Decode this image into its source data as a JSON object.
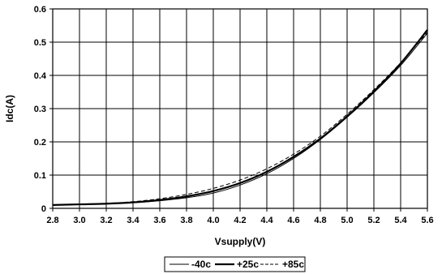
{
  "chart_data": {
    "type": "line",
    "xlabel": "Vsupply(V)",
    "ylabel": "Idc(A)",
    "xlim": [
      2.8,
      5.6
    ],
    "ylim": [
      0,
      0.6
    ],
    "xticks": [
      "2.8",
      "3.0",
      "3.2",
      "3.4",
      "3.6",
      "3.8",
      "4.0",
      "4.2",
      "4.4",
      "4.6",
      "4.8",
      "5.0",
      "5.2",
      "5.4",
      "5.6"
    ],
    "yticks": [
      "0",
      "0.1",
      "0.2",
      "0.3",
      "0.4",
      "0.5",
      "0.6"
    ],
    "grid": true,
    "legend_position": "bottom",
    "series": [
      {
        "name": "-40c",
        "style": "solid-thin",
        "x": [
          2.8,
          3.0,
          3.2,
          3.4,
          3.6,
          3.8,
          4.0,
          4.2,
          4.4,
          4.6,
          4.8,
          5.0,
          5.2,
          5.4,
          5.6
        ],
        "y": [
          0.01,
          0.012,
          0.014,
          0.017,
          0.023,
          0.032,
          0.046,
          0.07,
          0.104,
          0.15,
          0.207,
          0.274,
          0.348,
          0.43,
          0.527
        ]
      },
      {
        "name": "+25c",
        "style": "solid-thick",
        "x": [
          2.8,
          3.0,
          3.2,
          3.4,
          3.6,
          3.8,
          4.0,
          4.2,
          4.4,
          4.6,
          4.8,
          5.0,
          5.2,
          5.4,
          5.6
        ],
        "y": [
          0.01,
          0.012,
          0.014,
          0.018,
          0.025,
          0.036,
          0.052,
          0.076,
          0.11,
          0.155,
          0.21,
          0.277,
          0.352,
          0.436,
          0.537
        ]
      },
      {
        "name": "+85c",
        "style": "dashed",
        "x": [
          2.8,
          3.0,
          3.2,
          3.4,
          3.6,
          3.8,
          4.0,
          4.2,
          4.4,
          4.6,
          4.8,
          5.0,
          5.2,
          5.4,
          5.6
        ],
        "y": [
          0.01,
          0.012,
          0.015,
          0.02,
          0.029,
          0.042,
          0.06,
          0.085,
          0.119,
          0.163,
          0.217,
          0.283,
          0.357,
          0.438,
          0.53
        ]
      }
    ]
  }
}
